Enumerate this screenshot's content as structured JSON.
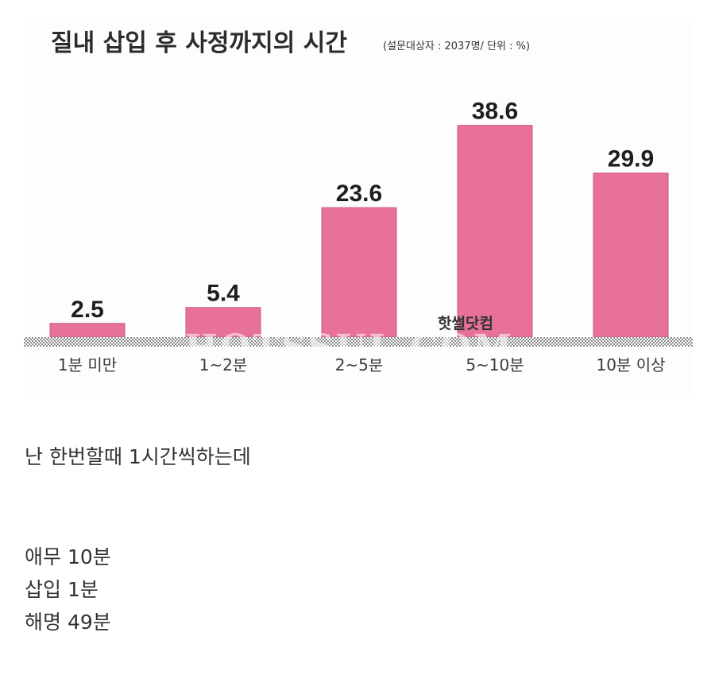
{
  "chart_data": {
    "type": "bar",
    "title": "질내 삽입 후 사정까지의 시간",
    "subtitle": "(설문대상자 : 2037명/ 단위 : %)",
    "categories": [
      "1분 미만",
      "1~2분",
      "2~5분",
      "5~10분",
      "10분 이상"
    ],
    "values": [
      2.5,
      5.4,
      23.6,
      38.6,
      29.9
    ],
    "value_labels": [
      "2.5",
      "5.4",
      "23.6",
      "38.6",
      "29.9"
    ],
    "ylim": [
      0,
      45
    ],
    "grid": false,
    "bar_color": "#e8719a"
  },
  "watermark": {
    "small": "핫썰닷컴",
    "large": "HOTSSUL.COM"
  },
  "captions": [
    "난 한번할때 1시간씩하는데",
    "애무 10분",
    "삽입 1분",
    "해명 49분"
  ]
}
